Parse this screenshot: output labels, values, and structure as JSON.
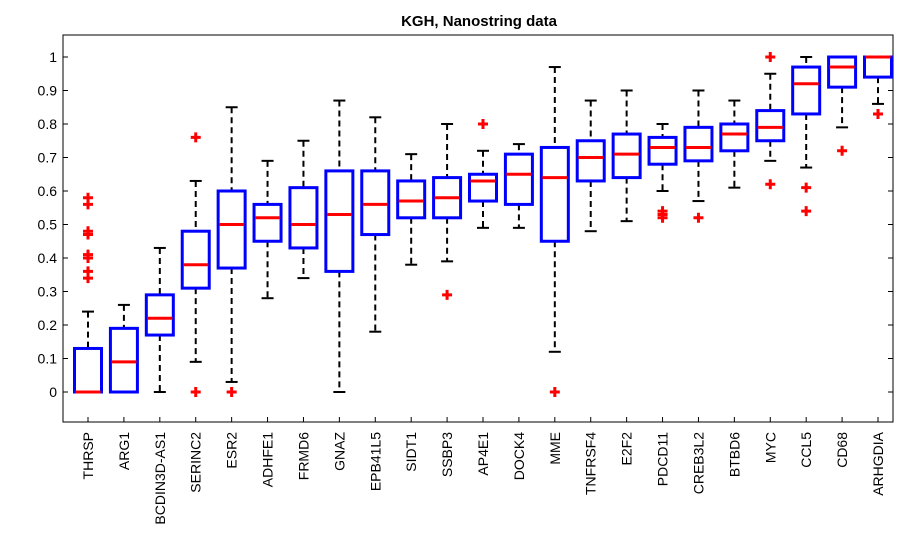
{
  "chart_data": {
    "type": "boxplot",
    "title": "KGH, Nanostring data",
    "xlabel": "",
    "ylabel": "",
    "ylim": [
      -0.08,
      1.05
    ],
    "yticks": [
      0,
      0.1,
      0.2,
      0.3,
      0.4,
      0.5,
      0.6,
      0.7,
      0.8,
      0.9,
      1
    ],
    "grid": false,
    "colors": {
      "box": "#0000ff",
      "median": "#ff0000",
      "whisker": "#000000",
      "outlier": "#ff0000"
    },
    "categories": [
      "THRSP",
      "ARG1",
      "BCDIN3D-AS1",
      "SERINC2",
      "ESR2",
      "ADHFE1",
      "FRMD6",
      "GNAZ",
      "EPB41L5",
      "SIDT1",
      "SSBP3",
      "AP4E1",
      "DOCK4",
      "MME",
      "TNFRSF4",
      "E2F2",
      "PDCD11",
      "CREB3L2",
      "BTBD6",
      "MYC",
      "CCL5",
      "CD68",
      "ARHGDIA"
    ],
    "boxes": [
      {
        "whisker_low": 0,
        "q1": 0,
        "median": 0,
        "q3": 0.13,
        "whisker_high": 0.24,
        "outliers": [
          0.34,
          0.36,
          0.4,
          0.41,
          0.47,
          0.48,
          0.56,
          0.58
        ]
      },
      {
        "whisker_low": 0,
        "q1": 0,
        "median": 0.09,
        "q3": 0.19,
        "whisker_high": 0.26,
        "outliers": []
      },
      {
        "whisker_low": 0,
        "q1": 0.17,
        "median": 0.22,
        "q3": 0.29,
        "whisker_high": 0.43,
        "outliers": []
      },
      {
        "whisker_low": 0.09,
        "q1": 0.31,
        "median": 0.38,
        "q3": 0.48,
        "whisker_high": 0.63,
        "outliers": [
          0,
          0.76
        ]
      },
      {
        "whisker_low": 0.03,
        "q1": 0.37,
        "median": 0.5,
        "q3": 0.6,
        "whisker_high": 0.85,
        "outliers": [
          0
        ]
      },
      {
        "whisker_low": 0.28,
        "q1": 0.45,
        "median": 0.52,
        "q3": 0.56,
        "whisker_high": 0.69,
        "outliers": []
      },
      {
        "whisker_low": 0.34,
        "q1": 0.43,
        "median": 0.5,
        "q3": 0.61,
        "whisker_high": 0.75,
        "outliers": []
      },
      {
        "whisker_low": 0,
        "q1": 0.36,
        "median": 0.53,
        "q3": 0.66,
        "whisker_high": 0.87,
        "outliers": []
      },
      {
        "whisker_low": 0.18,
        "q1": 0.47,
        "median": 0.56,
        "q3": 0.66,
        "whisker_high": 0.82,
        "outliers": []
      },
      {
        "whisker_low": 0.38,
        "q1": 0.52,
        "median": 0.57,
        "q3": 0.63,
        "whisker_high": 0.71,
        "outliers": []
      },
      {
        "whisker_low": 0.39,
        "q1": 0.52,
        "median": 0.58,
        "q3": 0.64,
        "whisker_high": 0.8,
        "outliers": [
          0.29
        ]
      },
      {
        "whisker_low": 0.49,
        "q1": 0.57,
        "median": 0.63,
        "q3": 0.65,
        "whisker_high": 0.72,
        "outliers": [
          0.8
        ]
      },
      {
        "whisker_low": 0.49,
        "q1": 0.56,
        "median": 0.65,
        "q3": 0.71,
        "whisker_high": 0.74,
        "outliers": []
      },
      {
        "whisker_low": 0.12,
        "q1": 0.45,
        "median": 0.64,
        "q3": 0.73,
        "whisker_high": 0.97,
        "outliers": [
          0
        ]
      },
      {
        "whisker_low": 0.48,
        "q1": 0.63,
        "median": 0.7,
        "q3": 0.75,
        "whisker_high": 0.87,
        "outliers": []
      },
      {
        "whisker_low": 0.51,
        "q1": 0.64,
        "median": 0.71,
        "q3": 0.77,
        "whisker_high": 0.9,
        "outliers": []
      },
      {
        "whisker_low": 0.6,
        "q1": 0.68,
        "median": 0.73,
        "q3": 0.76,
        "whisker_high": 0.8,
        "outliers": [
          0.52,
          0.53,
          0.54
        ]
      },
      {
        "whisker_low": 0.57,
        "q1": 0.69,
        "median": 0.73,
        "q3": 0.79,
        "whisker_high": 0.9,
        "outliers": [
          0.52
        ]
      },
      {
        "whisker_low": 0.61,
        "q1": 0.72,
        "median": 0.77,
        "q3": 0.8,
        "whisker_high": 0.87,
        "outliers": []
      },
      {
        "whisker_low": 0.69,
        "q1": 0.75,
        "median": 0.79,
        "q3": 0.84,
        "whisker_high": 0.95,
        "outliers": [
          0.62,
          1.0
        ]
      },
      {
        "whisker_low": 0.67,
        "q1": 0.83,
        "median": 0.92,
        "q3": 0.97,
        "whisker_high": 1.0,
        "outliers": [
          0.54,
          0.61
        ]
      },
      {
        "whisker_low": 0.79,
        "q1": 0.91,
        "median": 0.97,
        "q3": 1.0,
        "whisker_high": 1.0,
        "outliers": [
          0.72
        ]
      },
      {
        "whisker_low": 0.86,
        "q1": 0.94,
        "median": 1.0,
        "q3": 1.0,
        "whisker_high": 1.0,
        "outliers": [
          0.83
        ]
      }
    ]
  }
}
